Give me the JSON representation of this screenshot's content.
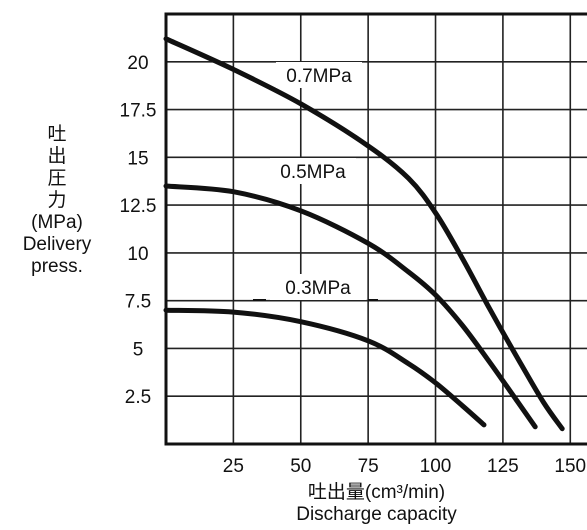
{
  "chart_data": {
    "type": "line",
    "title": "",
    "ylabel_lines": [
      "吐",
      "出",
      "圧",
      "力",
      "(MPa)",
      "Delivery",
      "press."
    ],
    "xlabel_lines": [
      "吐出量(cm³/min)",
      "Discharge capacity"
    ],
    "xlim": [
      0,
      150
    ],
    "ylim": [
      0,
      22.5
    ],
    "xticks": [
      25,
      50,
      75,
      100,
      125,
      150
    ],
    "yticks": [
      2.5,
      5,
      7.5,
      10,
      12.5,
      15,
      17.5,
      20
    ],
    "xtick_labels": [
      "25",
      "50",
      "75",
      "100",
      "125",
      "150"
    ],
    "ytick_labels": [
      "2.5",
      "5",
      "7.5",
      "10",
      "12.5",
      "15",
      "17.5",
      "20"
    ],
    "grid": true,
    "legend": "none",
    "series": [
      {
        "name": "0.7MPa",
        "color": "#111111",
        "x": [
          0,
          25,
          50,
          75,
          90,
          100,
          110,
          120,
          130,
          140,
          147
        ],
        "y": [
          21.2,
          19.6,
          17.8,
          15.6,
          13.9,
          12.1,
          9.7,
          7.1,
          4.6,
          2.2,
          0.8
        ]
      },
      {
        "name": "0.5MPa",
        "color": "#111111",
        "x": [
          0,
          25,
          50,
          75,
          90,
          100,
          110,
          120,
          130,
          137
        ],
        "y": [
          13.5,
          13.2,
          12.2,
          10.5,
          9.0,
          7.8,
          6.2,
          4.3,
          2.3,
          0.9
        ]
      },
      {
        "name": "0.3MPa",
        "color": "#111111",
        "x": [
          0,
          25,
          50,
          75,
          90,
          100,
          110,
          118
        ],
        "y": [
          7.0,
          6.9,
          6.4,
          5.4,
          4.2,
          3.2,
          2.0,
          1.0
        ]
      }
    ],
    "annotations": [
      {
        "text": "0.7MPa",
        "series": "0.7MPa"
      },
      {
        "text": "0.5MPa",
        "series": "0.5MPa"
      },
      {
        "text": "0.3MPa",
        "series": "0.3MPa"
      }
    ]
  }
}
